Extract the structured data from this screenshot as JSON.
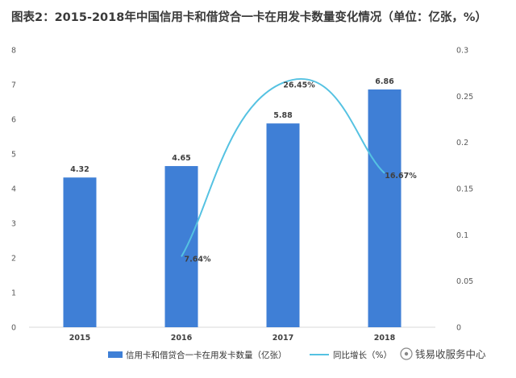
{
  "title": "图表2：2015-2018年中国信用卡和借贷合一卡在用发卡数量变化情况（单位：亿张，%）",
  "watermark": "钱易收服务中心",
  "colors": {
    "bar": "#3f7fd6",
    "line": "#55c2e2",
    "axis": "#d9d9d9"
  },
  "chart_data": {
    "type": "bar",
    "categories": [
      "2015",
      "2016",
      "2017",
      "2018"
    ],
    "series": [
      {
        "name": "信用卡和借贷合一卡在用发卡数量（亿张）",
        "type": "bar",
        "axis": "left",
        "values": [
          4.32,
          4.65,
          5.88,
          6.86
        ],
        "labels": [
          "4.32",
          "4.65",
          "5.88",
          "6.86"
        ]
      },
      {
        "name": "同比增长（%）",
        "type": "line",
        "axis": "right",
        "values": [
          null,
          0.0764,
          0.2645,
          0.1667
        ],
        "labels": [
          "",
          "7.64%",
          "26.45%",
          "16.67%"
        ]
      }
    ],
    "y_left": {
      "ylim": [
        0,
        8
      ],
      "ticks": [
        "0",
        "1",
        "2",
        "3",
        "4",
        "5",
        "6",
        "7",
        "8"
      ]
    },
    "y_right": {
      "ylim": [
        0,
        0.3
      ],
      "ticks": [
        "0",
        "0.05",
        "0.1",
        "0.15",
        "0.2",
        "0.25",
        "0.3"
      ]
    },
    "legend_position": "bottom"
  }
}
